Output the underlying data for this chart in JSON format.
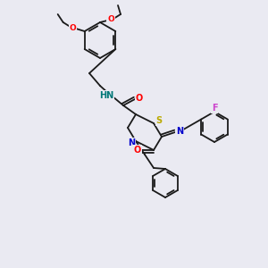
{
  "bg_color": "#eaeaf2",
  "bond_color": "#1a1a1a",
  "atom_colors": {
    "O": "#ff0000",
    "N": "#0000cc",
    "S": "#bbaa00",
    "F": "#cc44cc",
    "NH": "#007777",
    "C": "#1a1a1a"
  },
  "font_size": 7.0,
  "bond_width": 1.3
}
